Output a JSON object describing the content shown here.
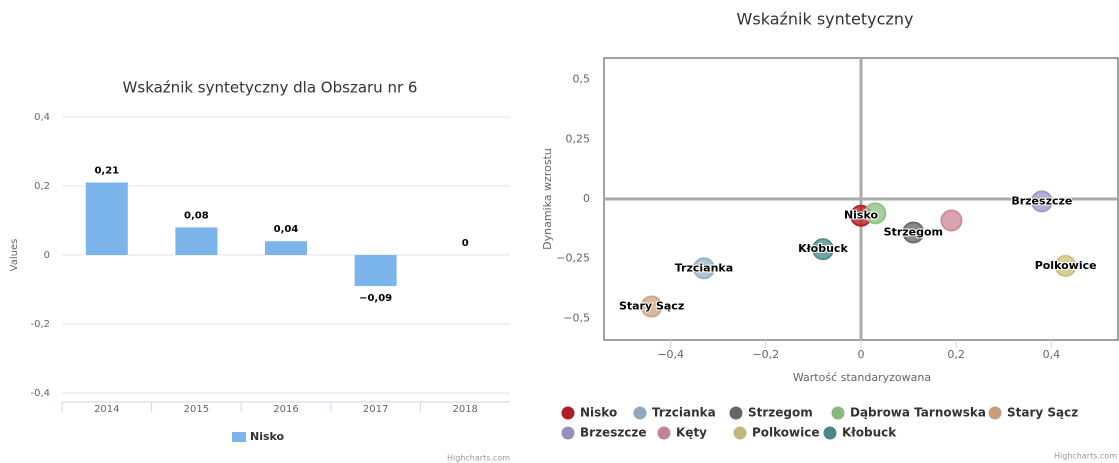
{
  "chart_data": [
    {
      "type": "bar",
      "title": "Wskaźnik syntetyczny dla Obszaru nr 6",
      "ylabel": "Values",
      "categories": [
        "2014",
        "2015",
        "2016",
        "2017",
        "2018"
      ],
      "series": [
        {
          "name": "Nisko",
          "color": "#7cb5ec",
          "values": [
            0.21,
            0.08,
            0.04,
            -0.09,
            0
          ],
          "value_labels": [
            "0,21",
            "0,08",
            "0,04",
            "−0,09",
            "0"
          ]
        }
      ],
      "ylim": [
        -0.4,
        0.4
      ],
      "yticks": [
        {
          "value": -0.4,
          "label": "-0,4"
        },
        {
          "value": -0.2,
          "label": "-0,2"
        },
        0,
        {
          "value": 0.2,
          "label": "0,2"
        },
        {
          "value": 0.4,
          "label": "0,4"
        }
      ],
      "grid": true,
      "credits": "Highcharts.com"
    },
    {
      "type": "scatter",
      "title": "Wskaźnik syntetyczny",
      "xlabel": "Wartość standaryzowana",
      "ylabel": "Dynamika wzrostu",
      "series": [
        {
          "name": "Nisko",
          "color": "#d9232e",
          "x": [
            0
          ],
          "values": [
            -0.07
          ]
        },
        {
          "name": "Trzcianka",
          "color": "#b3d4ef",
          "x": [
            -0.33
          ],
          "values": [
            -0.29
          ]
        },
        {
          "name": "Strzegom",
          "color": "#808080",
          "x": [
            0.11
          ],
          "values": [
            -0.14
          ]
        },
        {
          "name": "Dąbrowa Tarnowska",
          "color": "#a8e6a0",
          "x": [
            0.03
          ],
          "values": [
            -0.06
          ]
        },
        {
          "name": "Stary Sącz",
          "color": "#f7c59f",
          "x": [
            -0.44
          ],
          "values": [
            -0.45
          ]
        },
        {
          "name": "Brzeszcze",
          "color": "#b9b7ec",
          "x": [
            0.38
          ],
          "values": [
            -0.01
          ]
        },
        {
          "name": "Kęty",
          "color": "#f4a6b8",
          "x": [
            0.19
          ],
          "values": [
            -0.09
          ]
        },
        {
          "name": "Polkowice",
          "color": "#f3e59a",
          "x": [
            0.43
          ],
          "values": [
            -0.28
          ]
        },
        {
          "name": "Kłobuck",
          "color": "#5fa8a8",
          "x": [
            -0.08
          ],
          "values": [
            -0.21
          ]
        }
      ],
      "xlim": [
        -0.54,
        0.54
      ],
      "xticks": [
        {
          "value": -0.4,
          "label": "−0,4"
        },
        {
          "value": -0.2,
          "label": "−0,2"
        },
        0,
        {
          "value": 0.2,
          "label": "0,2"
        },
        {
          "value": 0.4,
          "label": "0,4"
        }
      ],
      "ylim": [
        -0.59,
        0.59
      ],
      "yticks": [
        {
          "value": -0.5,
          "label": "−0,5"
        },
        {
          "value": -0.25,
          "label": "−0,25"
        },
        0,
        {
          "value": 0.25,
          "label": "0,25"
        },
        {
          "value": 0.5,
          "label": "0,5"
        }
      ],
      "credits": "Highcharts.com"
    }
  ]
}
